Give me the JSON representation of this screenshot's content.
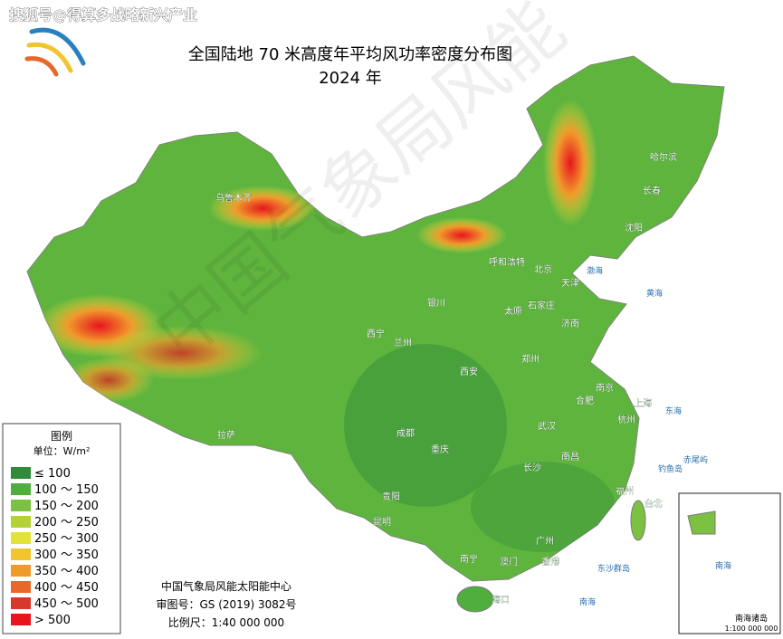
{
  "header": {
    "source_watermark": "搜狐号@得算多战略新兴产业",
    "title": "全国陆地 70 米高度年平均风功率密度分布图",
    "year": "2024 年",
    "watermark": "中国气象局风能"
  },
  "legend": {
    "title": "图例",
    "unit": "单位：W/m²",
    "items": [
      {
        "label": "≤ 100",
        "color": "#2f8a3a"
      },
      {
        "label": "100 ～ 150",
        "color": "#4fae3d"
      },
      {
        "label": "150 ～ 200",
        "color": "#7dc143"
      },
      {
        "label": "200 ～ 250",
        "color": "#b3d236"
      },
      {
        "label": "250 ～ 300",
        "color": "#e3e23a"
      },
      {
        "label": "300 ～ 350",
        "color": "#f2c42f"
      },
      {
        "label": "350 ～ 400",
        "color": "#f09a2b"
      },
      {
        "label": "400 ～ 450",
        "color": "#e8672a"
      },
      {
        "label": "450 ～ 500",
        "color": "#d8382b"
      },
      {
        "label": "> 500",
        "color": "#e8141e"
      }
    ]
  },
  "credits": {
    "org": "中国气象局风能太阳能中心",
    "approval": "审图号：GS (2019) 3082号",
    "scale": "比例尺：1:40 000 000"
  },
  "map": {
    "cities": [
      "乌鲁木齐",
      "哈尔滨",
      "长春",
      "沈阳",
      "呼和浩特",
      "北京",
      "天津",
      "银川",
      "石家庄",
      "太原",
      "济南",
      "西宁",
      "兰州",
      "西安",
      "郑州",
      "合肥",
      "南京",
      "上海",
      "拉萨",
      "成都",
      "重庆",
      "武汉",
      "杭州",
      "南昌",
      "长沙",
      "福州",
      "台北",
      "贵阳",
      "昆明",
      "南宁",
      "广州",
      "澳门",
      "香港",
      "海口"
    ],
    "seas": [
      "渤海",
      "黄海",
      "东海",
      "南海",
      "钓鱼岛",
      "赤尾屿",
      "东沙群岛"
    ],
    "inset": {
      "sea": "南海",
      "label": "南海诸岛",
      "scale": "1:100 000 000"
    }
  }
}
